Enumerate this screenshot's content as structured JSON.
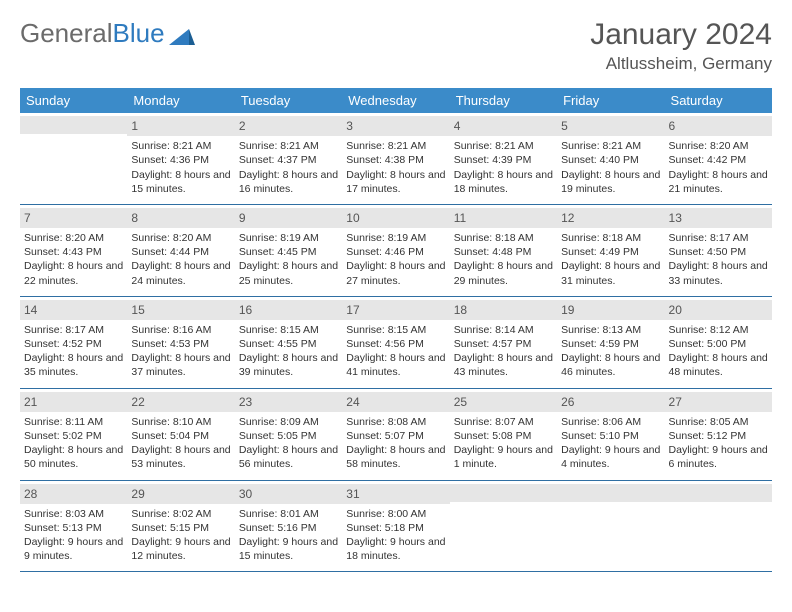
{
  "logo": {
    "text1": "General",
    "text2": "Blue"
  },
  "title": "January 2024",
  "location": "Altlussheim, Germany",
  "colors": {
    "header_bg": "#3b8bc9",
    "header_text": "#ffffff",
    "daynum_bg": "#e6e6e6",
    "week_border": "#2f6fa3",
    "logo_gray": "#6b6b6b",
    "logo_blue": "#2f7bbf",
    "text": "#333333"
  },
  "day_headers": [
    "Sunday",
    "Monday",
    "Tuesday",
    "Wednesday",
    "Thursday",
    "Friday",
    "Saturday"
  ],
  "weeks": [
    [
      {
        "day": "",
        "sunrise": "",
        "sunset": "",
        "daylight": ""
      },
      {
        "day": "1",
        "sunrise": "Sunrise: 8:21 AM",
        "sunset": "Sunset: 4:36 PM",
        "daylight": "Daylight: 8 hours and 15 minutes."
      },
      {
        "day": "2",
        "sunrise": "Sunrise: 8:21 AM",
        "sunset": "Sunset: 4:37 PM",
        "daylight": "Daylight: 8 hours and 16 minutes."
      },
      {
        "day": "3",
        "sunrise": "Sunrise: 8:21 AM",
        "sunset": "Sunset: 4:38 PM",
        "daylight": "Daylight: 8 hours and 17 minutes."
      },
      {
        "day": "4",
        "sunrise": "Sunrise: 8:21 AM",
        "sunset": "Sunset: 4:39 PM",
        "daylight": "Daylight: 8 hours and 18 minutes."
      },
      {
        "day": "5",
        "sunrise": "Sunrise: 8:21 AM",
        "sunset": "Sunset: 4:40 PM",
        "daylight": "Daylight: 8 hours and 19 minutes."
      },
      {
        "day": "6",
        "sunrise": "Sunrise: 8:20 AM",
        "sunset": "Sunset: 4:42 PM",
        "daylight": "Daylight: 8 hours and 21 minutes."
      }
    ],
    [
      {
        "day": "7",
        "sunrise": "Sunrise: 8:20 AM",
        "sunset": "Sunset: 4:43 PM",
        "daylight": "Daylight: 8 hours and 22 minutes."
      },
      {
        "day": "8",
        "sunrise": "Sunrise: 8:20 AM",
        "sunset": "Sunset: 4:44 PM",
        "daylight": "Daylight: 8 hours and 24 minutes."
      },
      {
        "day": "9",
        "sunrise": "Sunrise: 8:19 AM",
        "sunset": "Sunset: 4:45 PM",
        "daylight": "Daylight: 8 hours and 25 minutes."
      },
      {
        "day": "10",
        "sunrise": "Sunrise: 8:19 AM",
        "sunset": "Sunset: 4:46 PM",
        "daylight": "Daylight: 8 hours and 27 minutes."
      },
      {
        "day": "11",
        "sunrise": "Sunrise: 8:18 AM",
        "sunset": "Sunset: 4:48 PM",
        "daylight": "Daylight: 8 hours and 29 minutes."
      },
      {
        "day": "12",
        "sunrise": "Sunrise: 8:18 AM",
        "sunset": "Sunset: 4:49 PM",
        "daylight": "Daylight: 8 hours and 31 minutes."
      },
      {
        "day": "13",
        "sunrise": "Sunrise: 8:17 AM",
        "sunset": "Sunset: 4:50 PM",
        "daylight": "Daylight: 8 hours and 33 minutes."
      }
    ],
    [
      {
        "day": "14",
        "sunrise": "Sunrise: 8:17 AM",
        "sunset": "Sunset: 4:52 PM",
        "daylight": "Daylight: 8 hours and 35 minutes."
      },
      {
        "day": "15",
        "sunrise": "Sunrise: 8:16 AM",
        "sunset": "Sunset: 4:53 PM",
        "daylight": "Daylight: 8 hours and 37 minutes."
      },
      {
        "day": "16",
        "sunrise": "Sunrise: 8:15 AM",
        "sunset": "Sunset: 4:55 PM",
        "daylight": "Daylight: 8 hours and 39 minutes."
      },
      {
        "day": "17",
        "sunrise": "Sunrise: 8:15 AM",
        "sunset": "Sunset: 4:56 PM",
        "daylight": "Daylight: 8 hours and 41 minutes."
      },
      {
        "day": "18",
        "sunrise": "Sunrise: 8:14 AM",
        "sunset": "Sunset: 4:57 PM",
        "daylight": "Daylight: 8 hours and 43 minutes."
      },
      {
        "day": "19",
        "sunrise": "Sunrise: 8:13 AM",
        "sunset": "Sunset: 4:59 PM",
        "daylight": "Daylight: 8 hours and 46 minutes."
      },
      {
        "day": "20",
        "sunrise": "Sunrise: 8:12 AM",
        "sunset": "Sunset: 5:00 PM",
        "daylight": "Daylight: 8 hours and 48 minutes."
      }
    ],
    [
      {
        "day": "21",
        "sunrise": "Sunrise: 8:11 AM",
        "sunset": "Sunset: 5:02 PM",
        "daylight": "Daylight: 8 hours and 50 minutes."
      },
      {
        "day": "22",
        "sunrise": "Sunrise: 8:10 AM",
        "sunset": "Sunset: 5:04 PM",
        "daylight": "Daylight: 8 hours and 53 minutes."
      },
      {
        "day": "23",
        "sunrise": "Sunrise: 8:09 AM",
        "sunset": "Sunset: 5:05 PM",
        "daylight": "Daylight: 8 hours and 56 minutes."
      },
      {
        "day": "24",
        "sunrise": "Sunrise: 8:08 AM",
        "sunset": "Sunset: 5:07 PM",
        "daylight": "Daylight: 8 hours and 58 minutes."
      },
      {
        "day": "25",
        "sunrise": "Sunrise: 8:07 AM",
        "sunset": "Sunset: 5:08 PM",
        "daylight": "Daylight: 9 hours and 1 minute."
      },
      {
        "day": "26",
        "sunrise": "Sunrise: 8:06 AM",
        "sunset": "Sunset: 5:10 PM",
        "daylight": "Daylight: 9 hours and 4 minutes."
      },
      {
        "day": "27",
        "sunrise": "Sunrise: 8:05 AM",
        "sunset": "Sunset: 5:12 PM",
        "daylight": "Daylight: 9 hours and 6 minutes."
      }
    ],
    [
      {
        "day": "28",
        "sunrise": "Sunrise: 8:03 AM",
        "sunset": "Sunset: 5:13 PM",
        "daylight": "Daylight: 9 hours and 9 minutes."
      },
      {
        "day": "29",
        "sunrise": "Sunrise: 8:02 AM",
        "sunset": "Sunset: 5:15 PM",
        "daylight": "Daylight: 9 hours and 12 minutes."
      },
      {
        "day": "30",
        "sunrise": "Sunrise: 8:01 AM",
        "sunset": "Sunset: 5:16 PM",
        "daylight": "Daylight: 9 hours and 15 minutes."
      },
      {
        "day": "31",
        "sunrise": "Sunrise: 8:00 AM",
        "sunset": "Sunset: 5:18 PM",
        "daylight": "Daylight: 9 hours and 18 minutes."
      },
      {
        "day": "",
        "sunrise": "",
        "sunset": "",
        "daylight": ""
      },
      {
        "day": "",
        "sunrise": "",
        "sunset": "",
        "daylight": ""
      },
      {
        "day": "",
        "sunrise": "",
        "sunset": "",
        "daylight": ""
      }
    ]
  ]
}
